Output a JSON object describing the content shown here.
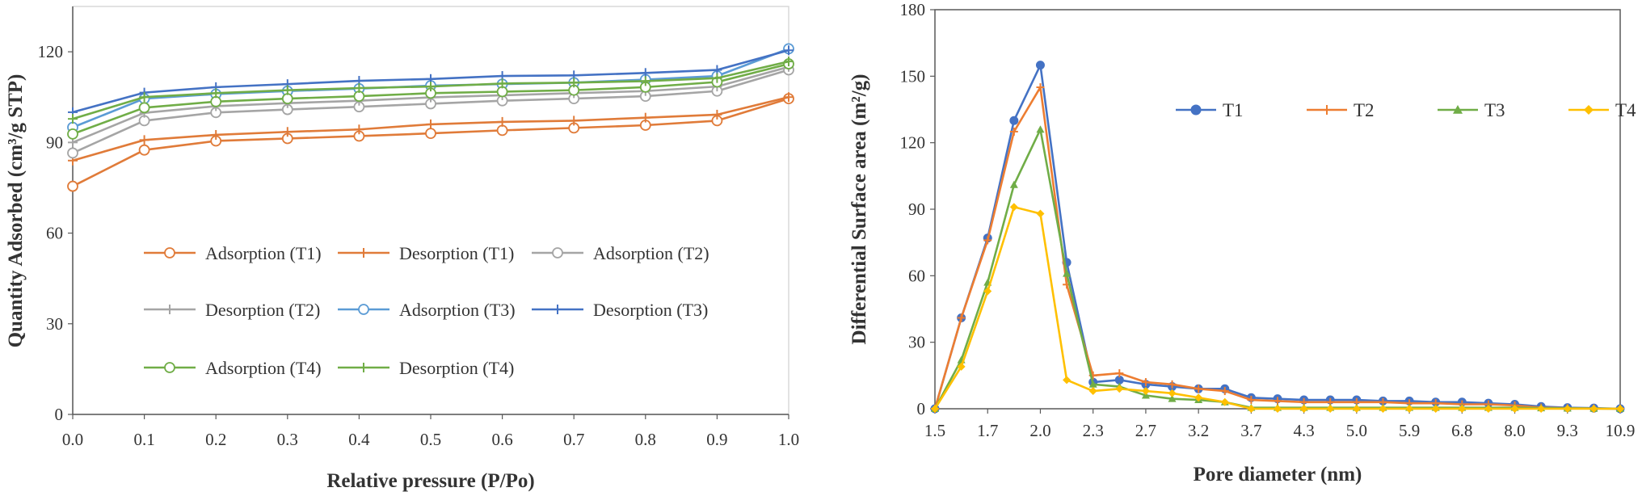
{
  "chart_data": [
    {
      "type": "line",
      "xlabel": "Relative pressure (P/Po)",
      "ylabel": "Quantity Adsorbed (cm³/g STP)",
      "xlim": [
        0,
        1
      ],
      "ylim": [
        0,
        135
      ],
      "xticks": [
        "0.0",
        "0.1",
        "0.2",
        "0.3",
        "0.4",
        "0.5",
        "0.6",
        "0.7",
        "0.8",
        "0.9",
        "1.0"
      ],
      "yticks": [
        "0",
        "30",
        "60",
        "90",
        "120"
      ],
      "legend_position": "center",
      "x": [
        0.0,
        0.1,
        0.2,
        0.3,
        0.4,
        0.5,
        0.6,
        0.7,
        0.8,
        0.9,
        1.0
      ],
      "series": [
        {
          "name": "Adsorption (T1)",
          "color": "#e07b39",
          "marker": "circle",
          "values": [
            75.5,
            87.5,
            90.5,
            91.3,
            92.1,
            93.0,
            94.0,
            94.8,
            95.7,
            97.2,
            104.5
          ]
        },
        {
          "name": "Desorption (T1)",
          "color": "#e07b39",
          "marker": "plus",
          "values": [
            84.0,
            90.8,
            92.5,
            93.5,
            94.3,
            96.0,
            96.8,
            97.2,
            98.2,
            99.2,
            105.0
          ]
        },
        {
          "name": "Adsorption (T2)",
          "color": "#a5a5a5",
          "marker": "circle",
          "values": [
            86.5,
            97.2,
            99.9,
            100.9,
            101.8,
            102.8,
            103.8,
            104.5,
            105.3,
            107.0,
            114.0
          ]
        },
        {
          "name": "Desorption (T2)",
          "color": "#a5a5a5",
          "marker": "plus",
          "values": [
            90.0,
            99.8,
            102.0,
            103.0,
            103.8,
            104.9,
            105.6,
            106.3,
            107.0,
            108.5,
            115.0
          ]
        },
        {
          "name": "Adsorption (T3)",
          "color": "#5b9bd5",
          "marker": "circle",
          "values": [
            95.0,
            104.5,
            106.0,
            107.0,
            107.8,
            108.8,
            109.3,
            109.8,
            110.8,
            112.0,
            121.0
          ]
        },
        {
          "name": "Desorption (T3)",
          "color": "#4472c4",
          "marker": "plus",
          "values": [
            100.0,
            106.5,
            108.3,
            109.3,
            110.4,
            111.0,
            112.0,
            112.2,
            113.0,
            114.0,
            120.5
          ]
        },
        {
          "name": "Adsorption (T4)",
          "color": "#70ad47",
          "marker": "circle",
          "values": [
            92.8,
            101.5,
            103.5,
            104.5,
            105.3,
            106.3,
            106.8,
            107.3,
            108.3,
            110.0,
            116.0
          ]
        },
        {
          "name": "Desorption (T4)",
          "color": "#70ad47",
          "marker": "plus",
          "values": [
            97.8,
            105.0,
            106.3,
            107.3,
            108.0,
            108.5,
            109.5,
            109.8,
            110.3,
            111.3,
            116.8
          ]
        }
      ]
    },
    {
      "type": "line",
      "xlabel": "Pore diameter (nm)",
      "ylabel": "Differential Surface area (m²/g)",
      "ylim": [
        0,
        180
      ],
      "yticks": [
        "0",
        "30",
        "60",
        "90",
        "120",
        "150",
        "180"
      ],
      "xtick_labels": [
        "1.5",
        "1.7",
        "2.0",
        "2.3",
        "2.7",
        "3.2",
        "3.7",
        "4.3",
        "5.0",
        "5.9",
        "6.8",
        "8.0",
        "9.3",
        "10.9"
      ],
      "legend_position": "top-right",
      "x_count": 27,
      "series": [
        {
          "name": "T1",
          "color": "#4472c4",
          "marker": "circle",
          "values": [
            0,
            41,
            77,
            130,
            155,
            66,
            12,
            13,
            11,
            10,
            9,
            9,
            5,
            4.5,
            4,
            4,
            4,
            3.5,
            3.5,
            3,
            3,
            2.5,
            2,
            1,
            0.5,
            0.3,
            0
          ]
        },
        {
          "name": "T2",
          "color": "#ed7d31",
          "marker": "plus",
          "values": [
            0,
            41,
            76,
            125,
            145,
            56,
            15,
            16,
            12,
            11,
            9,
            8,
            4,
            3.5,
            3,
            3,
            3,
            3,
            2.5,
            2.5,
            2,
            2,
            1.5,
            0.5,
            0.3,
            0.1,
            0
          ]
        },
        {
          "name": "T3",
          "color": "#70ad47",
          "marker": "triangle",
          "values": [
            0,
            22,
            57,
            101,
            126,
            61,
            11,
            10,
            6,
            4.5,
            4,
            3,
            0.5,
            0.5,
            0.5,
            0.5,
            0.5,
            0.5,
            0.5,
            0.5,
            0.5,
            0.5,
            0.5,
            0.3,
            0.2,
            0.1,
            0
          ]
        },
        {
          "name": "T4",
          "color": "#ffc000",
          "marker": "diamond",
          "values": [
            0,
            19,
            53,
            91,
            88,
            13,
            8,
            9,
            8,
            7,
            5,
            3,
            0,
            0,
            0,
            0,
            0,
            0,
            0,
            0,
            0,
            0,
            0,
            0,
            0,
            0,
            0
          ]
        }
      ]
    }
  ]
}
